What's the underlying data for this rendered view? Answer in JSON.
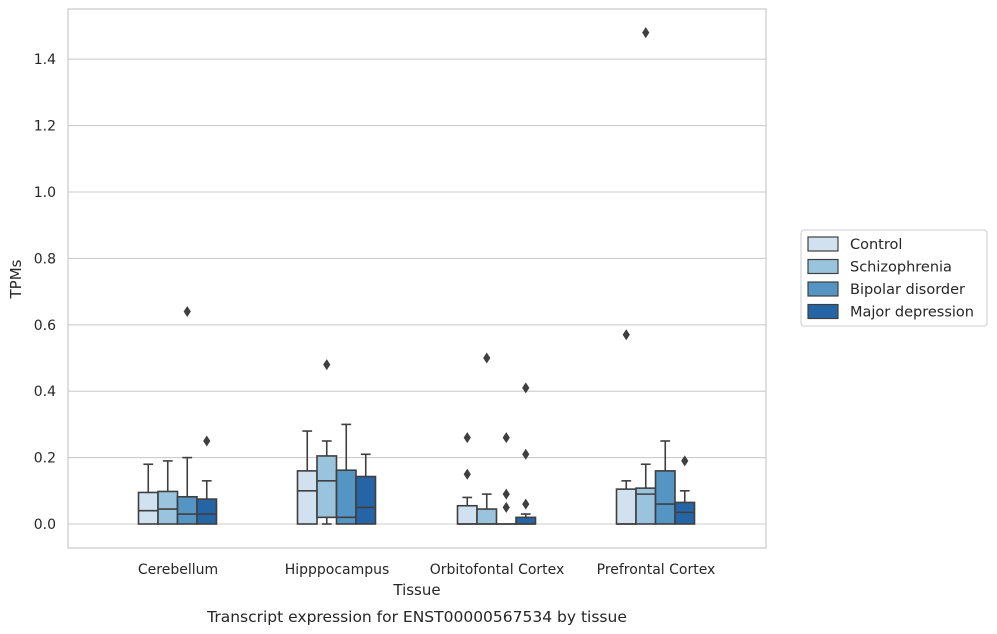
{
  "chart_data": {
    "type": "box",
    "xlabel": "Tissue",
    "ylabel": "TPMs",
    "caption": "Transcript expression for ENST00000567534 by tissue",
    "ylim": [
      -0.07,
      1.56
    ],
    "yticks": [
      "0.0",
      "0.2",
      "0.4",
      "0.6",
      "0.8",
      "1.0",
      "1.2",
      "1.4"
    ],
    "grid": "horizontal",
    "legend_position": "right",
    "categories": [
      "Cerebellum",
      "Hipppocampus",
      "Orbitofontal Cortex",
      "Prefrontal Cortex"
    ],
    "series": [
      {
        "name": "Control",
        "color": "#d1e1f0",
        "boxes": [
          {
            "q1": 0.0,
            "median": 0.04,
            "q3": 0.095,
            "whisker_low": 0.0,
            "whisker_high": 0.18,
            "outliers": []
          },
          {
            "q1": 0.0,
            "median": 0.1,
            "q3": 0.16,
            "whisker_low": 0.0,
            "whisker_high": 0.28,
            "outliers": []
          },
          {
            "q1": 0.0,
            "median": 0.0,
            "q3": 0.055,
            "whisker_low": 0.0,
            "whisker_high": 0.08,
            "outliers": [
              0.15,
              0.26
            ]
          },
          {
            "q1": 0.0,
            "median": 0.0,
            "q3": 0.105,
            "whisker_low": 0.0,
            "whisker_high": 0.13,
            "outliers": [
              0.57
            ]
          }
        ]
      },
      {
        "name": "Schizophrenia",
        "color": "#9ac3de",
        "boxes": [
          {
            "q1": 0.0,
            "median": 0.045,
            "q3": 0.098,
            "whisker_low": 0.0,
            "whisker_high": 0.19,
            "outliers": []
          },
          {
            "q1": 0.02,
            "median": 0.13,
            "q3": 0.205,
            "whisker_low": 0.0,
            "whisker_high": 0.25,
            "outliers": [
              0.48
            ]
          },
          {
            "q1": 0.0,
            "median": 0.0,
            "q3": 0.045,
            "whisker_low": 0.0,
            "whisker_high": 0.09,
            "outliers": [
              0.5
            ]
          },
          {
            "q1": 0.0,
            "median": 0.09,
            "q3": 0.108,
            "whisker_low": 0.0,
            "whisker_high": 0.18,
            "outliers": [
              1.48
            ]
          }
        ]
      },
      {
        "name": "Bipolar disorder",
        "color": "#5495c3",
        "boxes": [
          {
            "q1": 0.0,
            "median": 0.03,
            "q3": 0.082,
            "whisker_low": 0.0,
            "whisker_high": 0.2,
            "outliers": [
              0.64
            ]
          },
          {
            "q1": 0.0,
            "median": 0.02,
            "q3": 0.162,
            "whisker_low": 0.0,
            "whisker_high": 0.3,
            "outliers": []
          },
          {
            "q1": 0.0,
            "median": 0.0,
            "q3": 0.0,
            "whisker_low": 0.0,
            "whisker_high": 0.0,
            "outliers": [
              0.05,
              0.09,
              0.26
            ]
          },
          {
            "q1": 0.0,
            "median": 0.06,
            "q3": 0.16,
            "whisker_low": 0.0,
            "whisker_high": 0.25,
            "outliers": []
          }
        ]
      },
      {
        "name": "Major depression",
        "color": "#2565a5",
        "boxes": [
          {
            "q1": 0.0,
            "median": 0.03,
            "q3": 0.075,
            "whisker_low": 0.0,
            "whisker_high": 0.13,
            "outliers": [
              0.25
            ]
          },
          {
            "q1": 0.0,
            "median": 0.05,
            "q3": 0.143,
            "whisker_low": 0.0,
            "whisker_high": 0.21,
            "outliers": []
          },
          {
            "q1": 0.0,
            "median": 0.0,
            "q3": 0.02,
            "whisker_low": 0.0,
            "whisker_high": 0.03,
            "outliers": [
              0.06,
              0.21,
              0.41
            ]
          },
          {
            "q1": 0.0,
            "median": 0.035,
            "q3": 0.065,
            "whisker_low": 0.0,
            "whisker_high": 0.1,
            "outliers": [
              0.19
            ]
          }
        ]
      }
    ]
  }
}
